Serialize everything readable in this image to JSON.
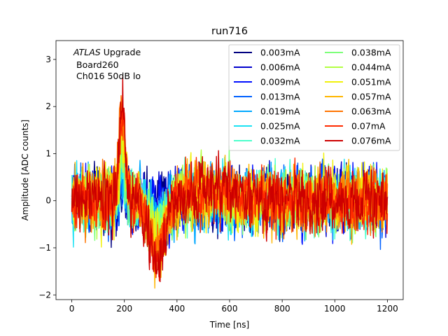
{
  "chart_data": {
    "type": "line",
    "title": "run716",
    "xlabel": "Time [ns]",
    "ylabel": "Amplitude [ADC counts]",
    "xlim": [
      -60,
      1260
    ],
    "ylim": [
      -2.1,
      3.4
    ],
    "xticks": [
      0,
      200,
      400,
      600,
      800,
      1000,
      1200
    ],
    "yticks": [
      -2,
      -1,
      0,
      1,
      2,
      3
    ],
    "xtick_labels": [
      "0",
      "200",
      "400",
      "600",
      "800",
      "1000",
      "1200"
    ],
    "ytick_labels": [
      "−2",
      "−1",
      "0",
      "1",
      "2",
      "3"
    ],
    "grid": false,
    "legend_position": "top-right",
    "legend_columns": 2,
    "x_range": [
      0,
      1200
    ],
    "sample_step_ns": 1.5625,
    "annotation": {
      "italic": "ATLAS",
      "line1_rest": " Upgrade",
      "line2": "Board260",
      "line3": "Ch016 50dB lo"
    },
    "series": [
      {
        "name": "0.003mA",
        "color": "#000080",
        "pulse_peak": 0.05,
        "noise": 0.3
      },
      {
        "name": "0.006mA",
        "color": "#0000cd",
        "pulse_peak": 0.1,
        "noise": 0.3
      },
      {
        "name": "0.009mA",
        "color": "#0010ff",
        "pulse_peak": 0.15,
        "noise": 0.3
      },
      {
        "name": "0.013mA",
        "color": "#0060ff",
        "pulse_peak": 0.22,
        "noise": 0.3
      },
      {
        "name": "0.019mA",
        "color": "#00a8ff",
        "pulse_peak": 0.32,
        "noise": 0.3
      },
      {
        "name": "0.025mA",
        "color": "#1ce2f4",
        "pulse_peak": 0.42,
        "noise": 0.3
      },
      {
        "name": "0.032mA",
        "color": "#4bffcc",
        "pulse_peak": 0.54,
        "noise": 0.3
      },
      {
        "name": "0.038mA",
        "color": "#7dff7a",
        "pulse_peak": 0.64,
        "noise": 0.3
      },
      {
        "name": "0.044mA",
        "color": "#b3ff43",
        "pulse_peak": 0.74,
        "noise": 0.3
      },
      {
        "name": "0.051mA",
        "color": "#f1f10b",
        "pulse_peak": 0.86,
        "noise": 0.3
      },
      {
        "name": "0.057mA",
        "color": "#ffb600",
        "pulse_peak": 0.96,
        "noise": 0.3
      },
      {
        "name": "0.063mA",
        "color": "#ff7400",
        "pulse_peak": 1.06,
        "noise": 0.3
      },
      {
        "name": "0.07mA",
        "color": "#ff2a00",
        "pulse_peak": 1.18,
        "noise": 0.3
      },
      {
        "name": "0.076mA",
        "color": "#cd0000",
        "pulse_peak": 1.28,
        "noise": 0.3
      }
    ]
  }
}
